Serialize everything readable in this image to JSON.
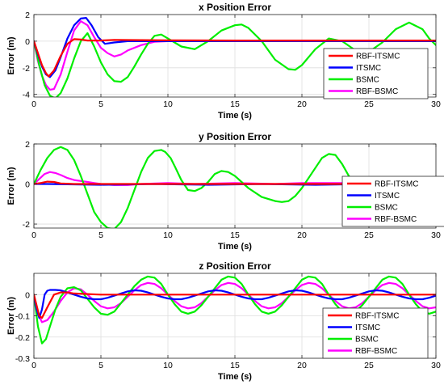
{
  "chart_data": [
    {
      "type": "line",
      "title": "x Position Error",
      "xlabel": "Time (s)",
      "ylabel": "Error (m)",
      "xlim": [
        0,
        30
      ],
      "ylim": [
        -4.2,
        2
      ],
      "xticks": [
        0,
        5,
        10,
        15,
        20,
        25,
        30
      ],
      "yticks": [
        -4,
        -2,
        0,
        2
      ],
      "grid": true,
      "legend": "right",
      "series": [
        {
          "name": "RBF-ITSMC",
          "color": "#ff0000",
          "x": [
            0,
            0.3,
            0.6,
            0.9,
            1.1,
            1.5,
            2.0,
            2.5,
            3.0,
            3.5,
            4.0,
            5.0,
            6.0,
            8.0,
            10.0,
            15.0,
            20.0,
            25.0,
            30.0
          ],
          "y": [
            0,
            -0.9,
            -1.8,
            -2.4,
            -2.65,
            -2.2,
            -1.1,
            -0.2,
            0.15,
            0.12,
            0.05,
            0.05,
            0.1,
            0.08,
            0.06,
            0.05,
            0.05,
            0.05,
            0.05
          ]
        },
        {
          "name": "ITSMC",
          "color": "#0000ff",
          "x": [
            0,
            0.3,
            0.6,
            0.9,
            1.2,
            1.6,
            2.0,
            2.5,
            3.0,
            3.5,
            3.9,
            4.3,
            4.8,
            5.3,
            6.0,
            7.0,
            8.0,
            10.0,
            15.0,
            20.0,
            25.0,
            30.0
          ],
          "y": [
            0,
            -1.0,
            -1.9,
            -2.5,
            -2.7,
            -2.2,
            -1.2,
            0.2,
            1.2,
            1.7,
            1.75,
            1.2,
            0.3,
            -0.2,
            -0.1,
            0,
            0,
            0,
            0,
            0,
            0,
            0
          ]
        },
        {
          "name": "BSMC",
          "color": "#00ee00",
          "x": [
            0,
            0.4,
            0.8,
            1.2,
            1.6,
            2.0,
            2.5,
            3.0,
            3.5,
            4.0,
            4.5,
            5.0,
            5.5,
            6.0,
            6.5,
            7.0,
            7.5,
            8.0,
            8.5,
            9.0,
            9.5,
            10.0,
            11.0,
            12.0,
            13.0,
            14.0,
            15.0,
            15.5,
            16.0,
            17.0,
            18.0,
            19.0,
            19.5,
            20.0,
            21.0,
            22.0,
            23.0,
            24.0,
            25.0,
            26.0,
            27.0,
            28.0,
            29.0,
            29.5,
            30.0
          ],
          "y": [
            0,
            -1.8,
            -3.3,
            -4.1,
            -4.3,
            -3.9,
            -2.8,
            -1.3,
            0.0,
            0.6,
            -0.4,
            -1.6,
            -2.5,
            -3.0,
            -3.05,
            -2.7,
            -1.9,
            -1.0,
            -0.2,
            0.4,
            0.5,
            0.2,
            -0.4,
            -0.6,
            0.0,
            0.8,
            1.2,
            1.25,
            1.0,
            0.0,
            -1.4,
            -2.1,
            -2.15,
            -1.8,
            -0.6,
            0.2,
            0.0,
            -0.7,
            -0.8,
            -0.1,
            0.9,
            1.4,
            0.9,
            0.2,
            -0.3
          ]
        },
        {
          "name": "RBF-BSMC",
          "color": "#ff00ff",
          "x": [
            0,
            0.3,
            0.6,
            0.9,
            1.2,
            1.5,
            2.0,
            2.5,
            3.0,
            3.5,
            4.0,
            4.5,
            5.0,
            5.5,
            6.0,
            6.5,
            7.0,
            8.0,
            9.0,
            10.0,
            12.0,
            15.0,
            20.0,
            25.0,
            30.0
          ],
          "y": [
            0,
            -1.5,
            -2.6,
            -3.3,
            -3.65,
            -3.6,
            -2.5,
            -0.8,
            0.8,
            1.5,
            1.2,
            0.3,
            -0.5,
            -0.9,
            -1.15,
            -1.0,
            -0.7,
            -0.3,
            -0.05,
            0.0,
            0.0,
            0.05,
            0.05,
            0.05,
            0.05
          ]
        }
      ]
    },
    {
      "type": "line",
      "title": "y Position Error",
      "xlabel": "Time (s)",
      "ylabel": "Error (m)",
      "xlim": [
        0,
        30
      ],
      "ylim": [
        -2.2,
        2
      ],
      "xticks": [
        0,
        5,
        10,
        15,
        20,
        25,
        30
      ],
      "yticks": [
        -2,
        0,
        2
      ],
      "grid": true,
      "legend": "right",
      "series": [
        {
          "name": "RBF-ITSMC",
          "color": "#ff0000",
          "x": [
            0,
            0.5,
            1.0,
            1.5,
            2.0,
            3.0,
            5.0,
            10.0,
            15.0,
            20.0,
            25.0,
            30.0
          ],
          "y": [
            0,
            0.05,
            0.12,
            0.1,
            0.03,
            0.0,
            0.0,
            0.0,
            0.0,
            0.0,
            0.0,
            0.0
          ]
        },
        {
          "name": "ITSMC",
          "color": "#0000ff",
          "x": [
            0,
            1,
            3,
            5,
            7,
            9,
            11,
            13,
            15,
            17,
            19,
            21,
            23,
            25,
            27,
            29,
            30
          ],
          "y": [
            0,
            0.0,
            -0.02,
            -0.04,
            -0.02,
            0.0,
            -0.02,
            -0.04,
            -0.02,
            0.0,
            -0.02,
            -0.04,
            -0.02,
            0.0,
            -0.02,
            -0.04,
            -0.03
          ]
        },
        {
          "name": "BSMC",
          "color": "#00ee00",
          "x": [
            0,
            0.5,
            1.0,
            1.5,
            2.0,
            2.5,
            3.0,
            3.5,
            4.0,
            4.5,
            5.0,
            5.5,
            6.0,
            6.5,
            7.0,
            7.5,
            8.0,
            8.5,
            9.0,
            9.5,
            9.8,
            10.2,
            10.5,
            11.0,
            11.5,
            12.0,
            12.5,
            13.0,
            13.5,
            14.0,
            14.5,
            15.0,
            15.5,
            16.0,
            17.0,
            18.0,
            18.5,
            19.0,
            19.5,
            20.0,
            21.0,
            21.5,
            22.0,
            22.5,
            23.0,
            23.5,
            24.0
          ],
          "y": [
            0,
            0.7,
            1.3,
            1.7,
            1.85,
            1.7,
            1.2,
            0.4,
            -0.5,
            -1.4,
            -1.9,
            -2.2,
            -2.25,
            -1.9,
            -1.2,
            -0.3,
            0.6,
            1.3,
            1.65,
            1.7,
            1.6,
            1.3,
            0.9,
            0.2,
            -0.3,
            -0.35,
            -0.2,
            0.1,
            0.5,
            0.65,
            0.6,
            0.4,
            0.1,
            -0.2,
            -0.65,
            -0.85,
            -0.9,
            -0.85,
            -0.6,
            -0.2,
            0.8,
            1.3,
            1.5,
            1.45,
            1.0,
            0.4,
            0.0
          ]
        },
        {
          "name": "RBF-BSMC",
          "color": "#ff00ff",
          "x": [
            0,
            0.4,
            0.8,
            1.2,
            1.6,
            2.0,
            2.5,
            3.0,
            3.5,
            4.0,
            4.5,
            5.0,
            5.5,
            6.0,
            7.0,
            8.0,
            10.0,
            12.0,
            15.0,
            18.0,
            20.0,
            22.0,
            23.5
          ],
          "y": [
            0,
            0.25,
            0.5,
            0.6,
            0.55,
            0.45,
            0.3,
            0.2,
            0.15,
            0.1,
            0.05,
            0.0,
            -0.03,
            -0.05,
            -0.05,
            0.0,
            0.05,
            0.0,
            0.05,
            0.0,
            0.05,
            0.05,
            0.05
          ]
        }
      ]
    },
    {
      "type": "line",
      "title": "z Position Error",
      "xlabel": "Time (s)",
      "ylabel": "Error (m)",
      "xlim": [
        0,
        30
      ],
      "ylim": [
        -0.3,
        0.1
      ],
      "xticks": [
        0,
        5,
        10,
        15,
        20,
        25,
        30
      ],
      "yticks": [
        -0.3,
        -0.2,
        -0.1,
        0
      ],
      "grid": true,
      "legend": "right",
      "series": [
        {
          "name": "RBF-ITSMC",
          "color": "#ff0000",
          "x": [
            0,
            0.2,
            0.4,
            0.6,
            1.0,
            1.5,
            2.0,
            2.5,
            3.0,
            5.0,
            10.0,
            15.0,
            20.0,
            25.0,
            30.0
          ],
          "y": [
            0,
            -0.05,
            -0.1,
            -0.11,
            -0.06,
            0.0,
            0.01,
            0.01,
            0.005,
            0.0,
            0.0,
            0.0,
            0.0,
            0.0,
            0.0
          ]
        },
        {
          "name": "ITSMC",
          "color": "#0000ff",
          "x": [
            0,
            0.2,
            0.4,
            0.6,
            0.8,
            1.0,
            1.2,
            1.6,
            2.0,
            2.5,
            3.0,
            3.5,
            4.0,
            4.5,
            5.0,
            5.5,
            6.0,
            6.5,
            7.0,
            7.5,
            8.0,
            8.5,
            9.0,
            9.5,
            10.0,
            10.5,
            11.0,
            11.5,
            12.0,
            12.5,
            13.0,
            13.5,
            14.0,
            14.5,
            15.0,
            15.5,
            16.0,
            16.5,
            17.0,
            17.5,
            18.0,
            18.5,
            19.0,
            19.5,
            20.0,
            20.5,
            21.0,
            21.5,
            22.0,
            22.5,
            23.0,
            23.5,
            24.0,
            24.5,
            25.0,
            25.5,
            26.0,
            26.5,
            27.0,
            27.5,
            28.0,
            28.5,
            29.0,
            29.5,
            30.0
          ],
          "y": [
            0,
            -0.07,
            -0.11,
            -0.07,
            0.0,
            0.018,
            0.022,
            0.022,
            0.02,
            0.01,
            0.0,
            -0.01,
            -0.018,
            -0.022,
            -0.022,
            -0.015,
            -0.005,
            0.005,
            0.015,
            0.02,
            0.018,
            0.01,
            0.0,
            -0.01,
            -0.018,
            -0.022,
            -0.022,
            -0.015,
            -0.005,
            0.005,
            0.015,
            0.02,
            0.018,
            0.01,
            0.0,
            -0.01,
            -0.018,
            -0.022,
            -0.022,
            -0.015,
            -0.005,
            0.005,
            0.015,
            0.02,
            0.018,
            0.01,
            0.0,
            -0.01,
            -0.018,
            -0.022,
            -0.022,
            -0.015,
            -0.005,
            0.005,
            0.015,
            0.02,
            0.018,
            0.01,
            0.0,
            -0.01,
            -0.018,
            -0.022,
            -0.022,
            -0.015,
            -0.005
          ]
        },
        {
          "name": "BSMC",
          "color": "#00ee00",
          "x": [
            0,
            0.3,
            0.6,
            0.9,
            1.2,
            1.6,
            2.0,
            2.5,
            3.0,
            3.5,
            4.0,
            4.5,
            5.0,
            5.5,
            6.0,
            6.5,
            7.0,
            7.5,
            8.0,
            8.5,
            9.0,
            9.5,
            10.0,
            10.5,
            11.0,
            11.5,
            12.0,
            12.5,
            13.0,
            13.5,
            14.0,
            14.5,
            15.0,
            15.5,
            16.0,
            16.5,
            17.0,
            17.5,
            18.0,
            18.5,
            19.0,
            19.5,
            20.0,
            20.5,
            21.0,
            21.5,
            22.0,
            22.5,
            23.0,
            23.5,
            24.0,
            24.5,
            25.0,
            25.5,
            26.0,
            26.5,
            27.0,
            27.5,
            28.0,
            28.5,
            29.0,
            29.5,
            30.0
          ],
          "y": [
            0,
            -0.15,
            -0.23,
            -0.21,
            -0.15,
            -0.07,
            -0.01,
            0.03,
            0.035,
            0.02,
            -0.02,
            -0.06,
            -0.09,
            -0.095,
            -0.08,
            -0.04,
            0.0,
            0.04,
            0.07,
            0.085,
            0.08,
            0.05,
            0.0,
            -0.045,
            -0.08,
            -0.09,
            -0.08,
            -0.05,
            -0.01,
            0.03,
            0.07,
            0.085,
            0.08,
            0.05,
            0.0,
            -0.045,
            -0.08,
            -0.09,
            -0.08,
            -0.05,
            -0.01,
            0.03,
            0.07,
            0.085,
            0.08,
            0.05,
            0.0,
            -0.045,
            -0.08,
            -0.09,
            -0.08,
            -0.05,
            -0.01,
            0.03,
            0.07,
            0.085,
            0.08,
            0.05,
            0.0,
            -0.045,
            -0.08,
            -0.09,
            -0.08
          ]
        },
        {
          "name": "RBF-BSMC",
          "color": "#ff00ff",
          "x": [
            0,
            0.3,
            0.6,
            1.0,
            1.5,
            2.0,
            2.5,
            3.0,
            3.5,
            4.0,
            4.5,
            5.0,
            5.5,
            6.0,
            6.5,
            7.0,
            7.5,
            8.0,
            8.5,
            9.0,
            9.5,
            10.0,
            10.5,
            11.0,
            11.5,
            12.0,
            12.5,
            13.0,
            13.5,
            14.0,
            14.5,
            15.0,
            15.5,
            16.0,
            16.5,
            17.0,
            17.5,
            18.0,
            18.5,
            19.0,
            19.5,
            20.0,
            20.5,
            21.0,
            21.5,
            22.0,
            22.5,
            23.0,
            23.5,
            24.0,
            24.5,
            25.0,
            25.5,
            26.0,
            26.5,
            27.0,
            27.5,
            28.0,
            28.5,
            29.0,
            29.5,
            30.0
          ],
          "y": [
            0,
            -0.09,
            -0.13,
            -0.12,
            -0.08,
            -0.03,
            0.01,
            0.03,
            0.025,
            0.0,
            -0.03,
            -0.055,
            -0.065,
            -0.06,
            -0.04,
            -0.01,
            0.02,
            0.045,
            0.055,
            0.05,
            0.03,
            0.0,
            -0.03,
            -0.055,
            -0.065,
            -0.06,
            -0.04,
            -0.01,
            0.02,
            0.045,
            0.055,
            0.05,
            0.03,
            0.0,
            -0.03,
            -0.055,
            -0.065,
            -0.06,
            -0.04,
            -0.01,
            0.02,
            0.045,
            0.055,
            0.05,
            0.03,
            0.0,
            -0.03,
            -0.055,
            -0.065,
            -0.06,
            -0.04,
            -0.01,
            0.02,
            0.045,
            0.055,
            0.05,
            0.03,
            0.0,
            -0.03,
            -0.055,
            -0.065,
            -0.06
          ]
        }
      ]
    }
  ]
}
